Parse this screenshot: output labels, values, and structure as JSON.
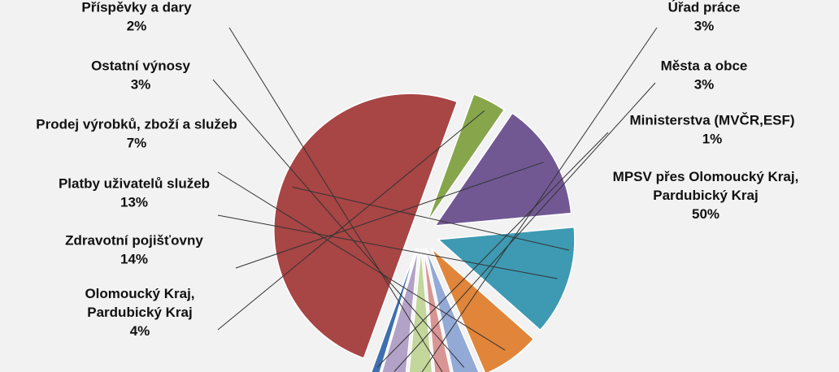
{
  "chart_data": {
    "type": "pie",
    "exploded": true,
    "legend": "none",
    "slices": [
      {
        "label": "MPSV přes Olomoucký Kraj, Pardubický Kraj",
        "label_lines": [
          "MPSV přes Olomoucký Kraj,",
          "Pardubický Kraj"
        ],
        "percent_label": "50%",
        "value": 50,
        "color": "#A84545"
      },
      {
        "label": "Olomoucký Kraj, Pardubický Kraj",
        "label_lines": [
          "Olomoucký Kraj,",
          "Pardubický Kraj"
        ],
        "percent_label": "4%",
        "value": 4,
        "color": "#87A64C"
      },
      {
        "label": "Zdravotní pojišťovny",
        "label_lines": [
          "Zdravotní pojišťovny"
        ],
        "percent_label": "14%",
        "value": 14,
        "color": "#715893"
      },
      {
        "label": "Platby uživatelů služeb",
        "label_lines": [
          "Platby uživatelů služeb"
        ],
        "percent_label": "13%",
        "value": 13,
        "color": "#3E9AB2"
      },
      {
        "label": "Prodej výrobků, zboží a služeb",
        "label_lines": [
          "Prodej výrobků, zboží a služeb"
        ],
        "percent_label": "7%",
        "value": 7,
        "color": "#E08539"
      },
      {
        "label": "Ostatní výnosy",
        "label_lines": [
          "Ostatní výnosy"
        ],
        "percent_label": "3%",
        "value": 3,
        "color": "#93A9D6"
      },
      {
        "label": "Příspěvky a dary",
        "label_lines": [
          "Příspěvky a dary"
        ],
        "percent_label": "2%",
        "value": 2,
        "color": "#D99594"
      },
      {
        "label": "Úřad práce",
        "label_lines": [
          "Úřad práce"
        ],
        "percent_label": "3%",
        "value": 3,
        "color": "#C3D69B"
      },
      {
        "label": "Města a obce",
        "label_lines": [
          "Města a obce"
        ],
        "percent_label": "3%",
        "value": 3,
        "color": "#B3A2C7"
      },
      {
        "label": "Ministerstva (MVČR,ESF)",
        "label_lines": [
          "Ministerstva (MVČR,ESF)"
        ],
        "percent_label": "1%",
        "value": 1,
        "color": "#3F6FAE"
      }
    ]
  }
}
